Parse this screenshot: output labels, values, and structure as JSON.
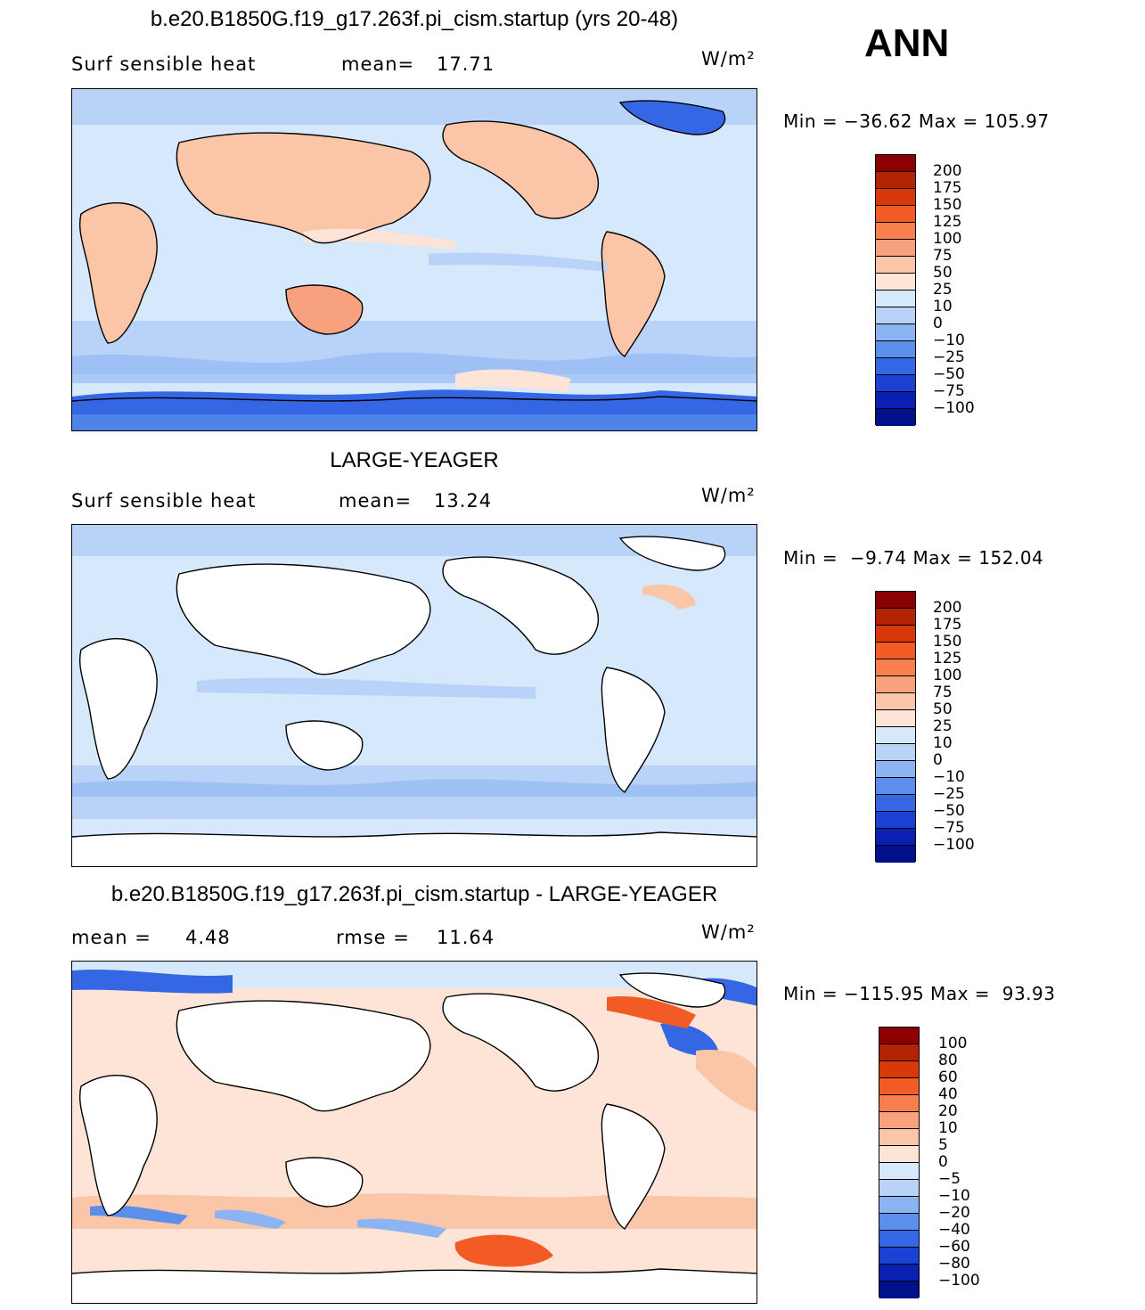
{
  "header": {
    "season": "ANN"
  },
  "panels": [
    {
      "title": "b.e20.B1850G.f19_g17.263f.pi_cism.startup (yrs 20-48)",
      "variable": "Surf sensible heat",
      "stat1_label": "mean=",
      "stat1_value": "17.71",
      "units": "W/m²",
      "min_max": "Min = −36.62 Max = 105.97",
      "colorbar": {
        "labels": [
          "200",
          "175",
          "150",
          "125",
          "100",
          "75",
          "50",
          "25",
          "10",
          "0",
          "−10",
          "−25",
          "−50",
          "−75",
          "−100"
        ],
        "colors": [
          "#8b0000",
          "#b22203",
          "#d9380a",
          "#f25a26",
          "#fa7f4e",
          "#f7a17e",
          "#fbc6a8",
          "#fde4d6",
          "#d6e8fb",
          "#b8d2f8",
          "#8db4f2",
          "#5b8fec",
          "#3566e4",
          "#1a41d3",
          "#0a20b3",
          "#00108a"
        ]
      }
    },
    {
      "title": "LARGE-YEAGER",
      "variable": "Surf sensible heat",
      "stat1_label": "mean=",
      "stat1_value": "13.24",
      "units": "W/m²",
      "min_max": "Min =  −9.74 Max = 152.04",
      "colorbar": {
        "labels": [
          "200",
          "175",
          "150",
          "125",
          "100",
          "75",
          "50",
          "25",
          "10",
          "0",
          "−10",
          "−25",
          "−50",
          "−75",
          "−100"
        ],
        "colors": [
          "#8b0000",
          "#b22203",
          "#d9380a",
          "#f25a26",
          "#fa7f4e",
          "#f7a17e",
          "#fbc6a8",
          "#fde4d6",
          "#d6e8fb",
          "#b8d2f8",
          "#8db4f2",
          "#5b8fec",
          "#3566e4",
          "#1a41d3",
          "#0a20b3",
          "#00108a"
        ]
      }
    },
    {
      "title": "b.e20.B1850G.f19_g17.263f.pi_cism.startup - LARGE-YEAGER",
      "stat1_label": "mean =",
      "stat1_value": "4.48",
      "stat2_label": "rmse =",
      "stat2_value": "11.64",
      "units": "W/m²",
      "min_max": "Min = −115.95 Max =  93.93",
      "colorbar": {
        "labels": [
          "100",
          "80",
          "60",
          "40",
          "20",
          "10",
          "5",
          "0",
          "−5",
          "−10",
          "−20",
          "−40",
          "−60",
          "−80",
          "−100"
        ],
        "colors": [
          "#8b0000",
          "#b22203",
          "#d9380a",
          "#f25a26",
          "#fa7f4e",
          "#f7a17e",
          "#fbc6a8",
          "#fde4d6",
          "#d6e8fb",
          "#b8d2f8",
          "#8db4f2",
          "#5b8fec",
          "#3566e4",
          "#1a41d3",
          "#0a20b3",
          "#00108a"
        ]
      }
    }
  ]
}
